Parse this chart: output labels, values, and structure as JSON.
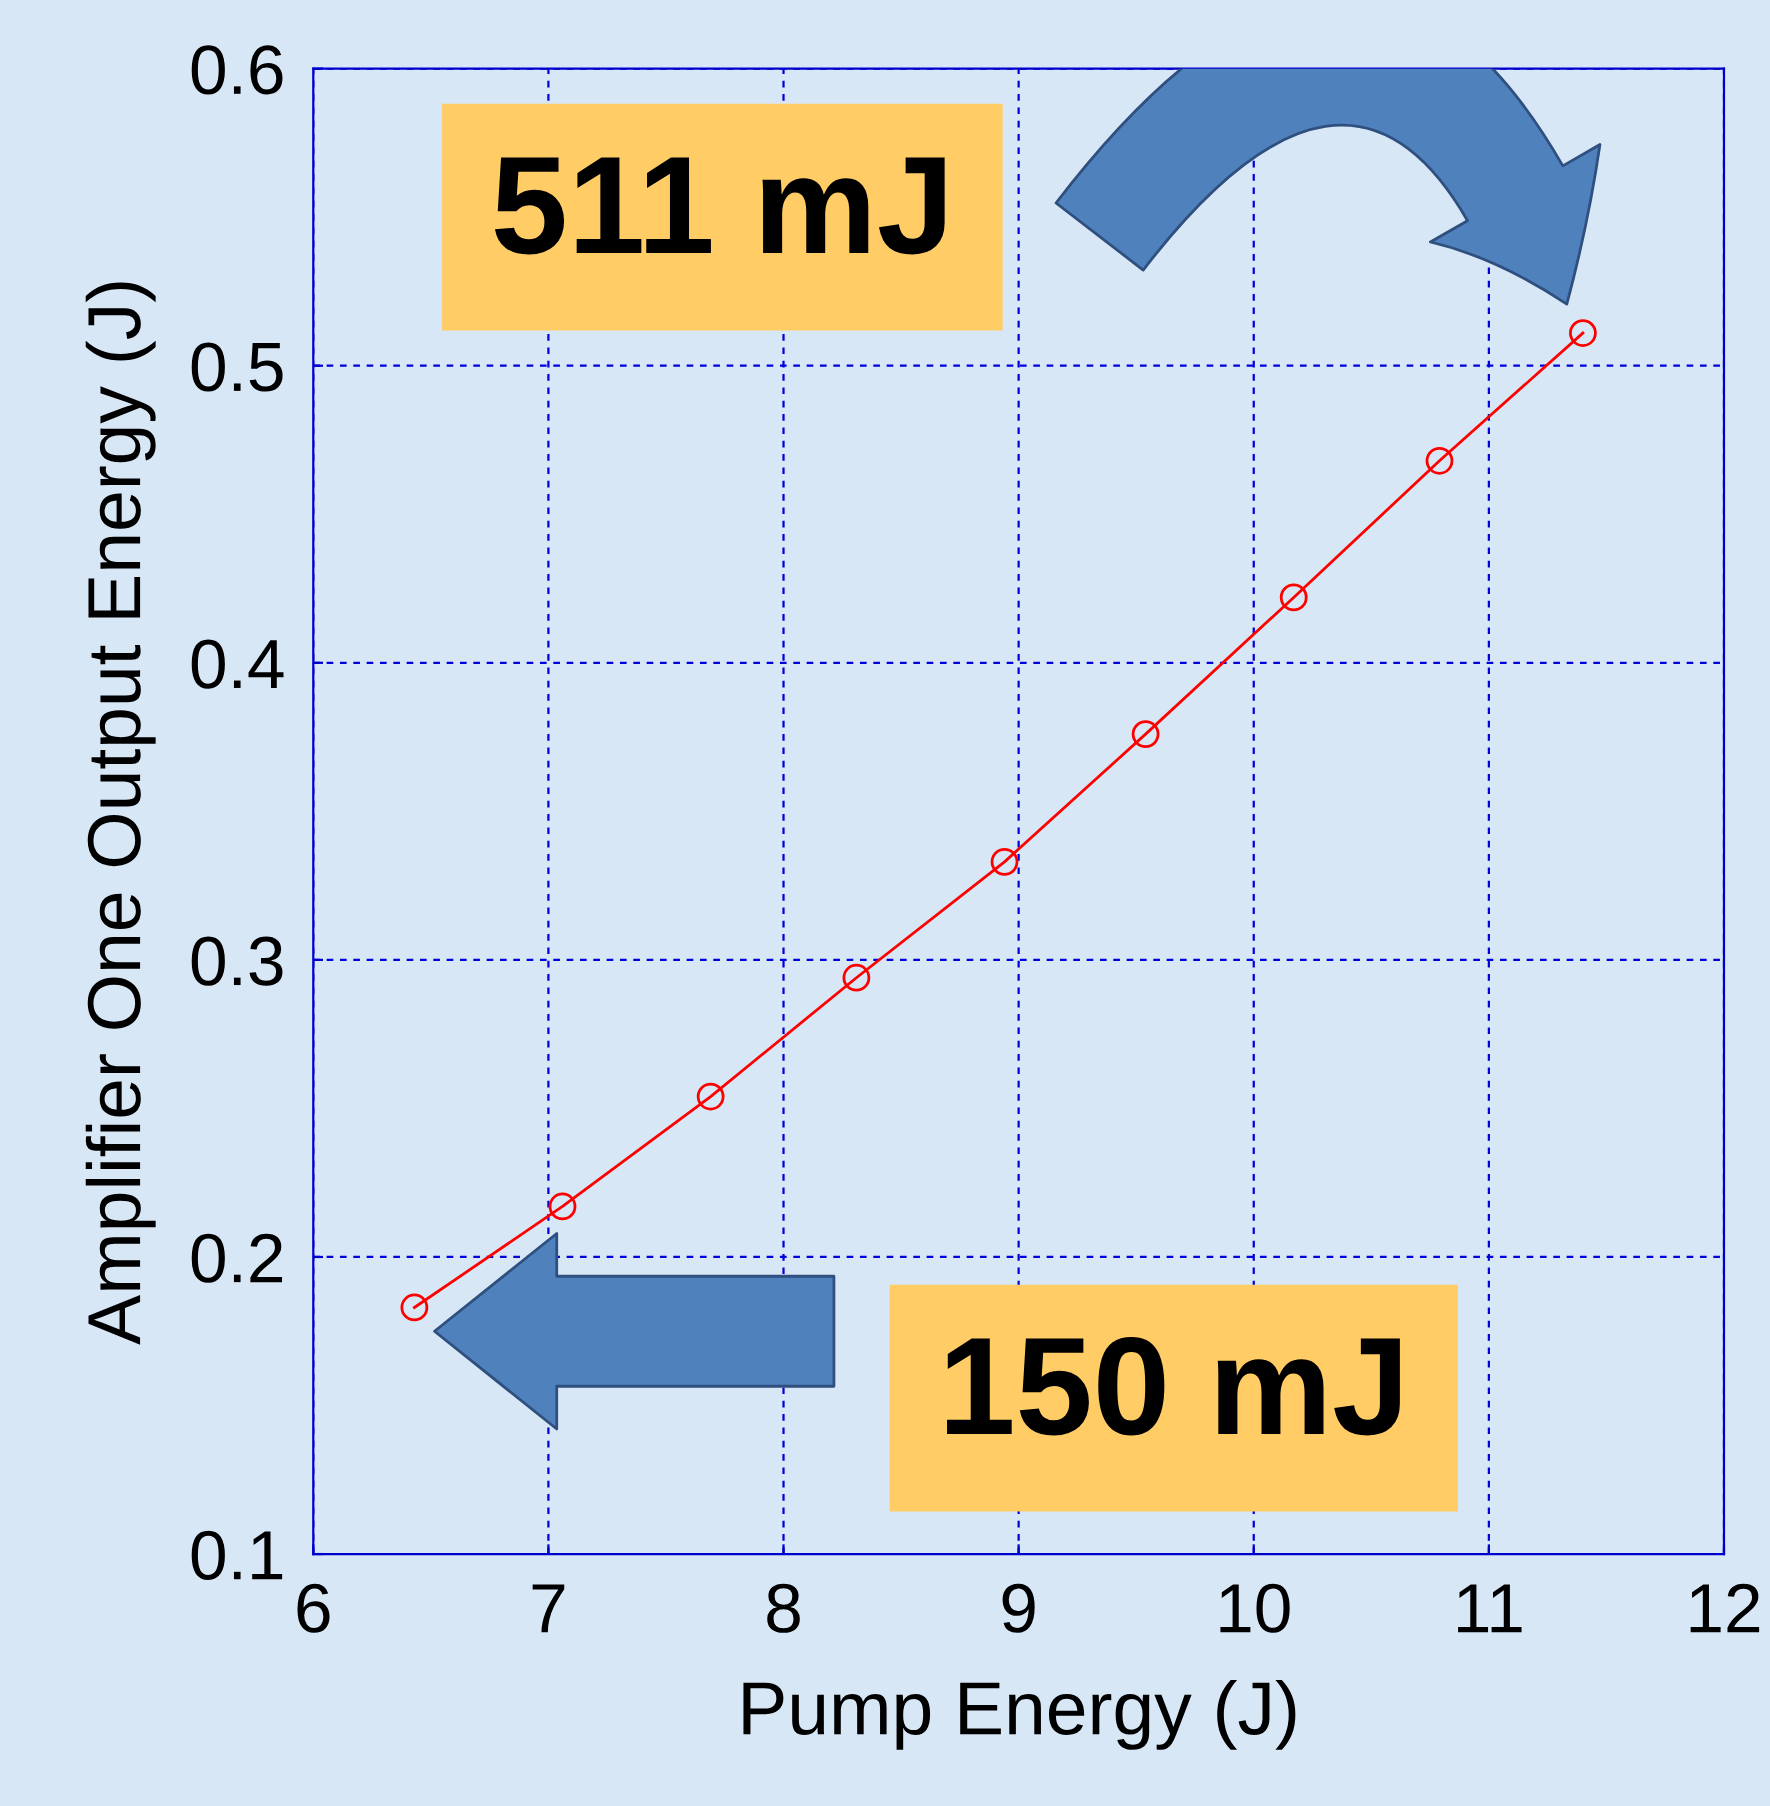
{
  "chart_data": {
    "type": "line",
    "xlabel": "Pump Energy (J)",
    "ylabel": "Amplifier One Output Energy (J)",
    "x": [
      6.43,
      7.06,
      7.69,
      8.31,
      8.94,
      9.54,
      10.17,
      10.79,
      11.4
    ],
    "series": [
      {
        "color": "#ff0000",
        "values": [
          0.183,
          0.217,
          0.254,
          0.294,
          0.333,
          0.376,
          0.422,
          0.468,
          0.511
        ]
      }
    ],
    "marker": "circle",
    "line_style": "solid",
    "xlim": [
      6,
      12
    ],
    "xticks": [
      6,
      7,
      8,
      9,
      10,
      11,
      12
    ],
    "ylim": [
      0.1,
      0.6
    ],
    "yticks": [
      0.1,
      0.2,
      0.3,
      0.4,
      0.5,
      0.6
    ],
    "grid": true,
    "annotations": [
      "511 mJ",
      "150 mJ"
    ]
  }
}
